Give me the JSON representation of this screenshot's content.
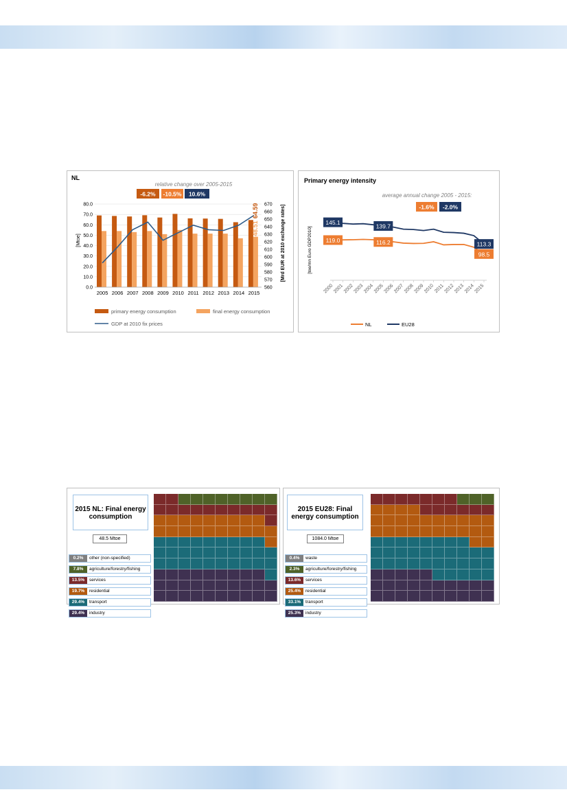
{
  "colors": {
    "primary": "#c55a11",
    "final": "#f4a460",
    "gdp": "#2e5c8a",
    "nl": "#ed7d31",
    "eu28": "#1f3864",
    "waste_other": "#808080",
    "agriculture": "#4f6228",
    "services": "#7b2a2a",
    "residential": "#b35a10",
    "transport": "#1b6b78",
    "industry": "#3f3151"
  },
  "chart_data": [
    {
      "type": "bar",
      "title": "NL",
      "subtitle": "relative change over 2005-2015",
      "badges": [
        {
          "value": "-6.2%",
          "color": "#c55a11"
        },
        {
          "value": "-10.5%",
          "color": "#ed7d31"
        },
        {
          "value": "10.6%",
          "color": "#1f3864"
        }
      ],
      "categories": [
        "2005",
        "2006",
        "2007",
        "2008",
        "2009",
        "2010",
        "2011",
        "2012",
        "2013",
        "2014",
        "2015"
      ],
      "series": [
        {
          "name": "primary energy consumption",
          "kind": "bar",
          "axis": "left",
          "values": [
            69.0,
            68.5,
            68.0,
            69.2,
            67.0,
            70.5,
            66.2,
            66.0,
            65.7,
            62.5,
            64.59
          ]
        },
        {
          "name": "final energy consumption",
          "kind": "bar",
          "axis": "left",
          "values": [
            54.0,
            54.0,
            53.0,
            54.0,
            51.0,
            55.0,
            51.5,
            51.5,
            51.5,
            47.0,
            48.51
          ]
        },
        {
          "name": "GDP at 2010 fix prices",
          "kind": "line",
          "axis": "right",
          "values": [
            592,
            613,
            636,
            646,
            622,
            632,
            642,
            636,
            635,
            642,
            655
          ]
        }
      ],
      "ylabel": "[Mtoe]",
      "y2label": "[Mrd EUR at 2010 exchange rates]",
      "ylim": [
        0,
        80
      ],
      "yticks": [
        "0.0",
        "10.0",
        "20.0",
        "30.0",
        "40.0",
        "50.0",
        "60.0",
        "70.0",
        "80.0"
      ],
      "y2lim": [
        560,
        670
      ],
      "y2ticks": [
        "560",
        "570",
        "580",
        "590",
        "600",
        "610",
        "620",
        "630",
        "640",
        "650",
        "660",
        "670"
      ],
      "annotations": [
        "64.59",
        "48.51"
      ],
      "legend": "bottom"
    },
    {
      "type": "line",
      "title": "Primary energy intensity",
      "subtitle": "average annual change 2005 - 2015:",
      "badges": [
        {
          "value": "-1.6%",
          "color": "#ed7d31"
        },
        {
          "value": "-2.0%",
          "color": "#1f3864"
        }
      ],
      "x": [
        "2000",
        "2001",
        "2002",
        "2003",
        "2004",
        "2005",
        "2006",
        "2007",
        "2008",
        "2009",
        "2010",
        "2011",
        "2012",
        "2013",
        "2014",
        "2015"
      ],
      "series": [
        {
          "name": "NL",
          "values": [
            119.0,
            119.3,
            119.5,
            120.0,
            119.5,
            116.2,
            116.5,
            114.5,
            114.0,
            114.2,
            116.5,
            112.0,
            112.5,
            112.5,
            108.5,
            98.5
          ]
        },
        {
          "name": "EU28",
          "values": [
            145.1,
            143.5,
            142.5,
            143.0,
            141.5,
            139.7,
            138.0,
            135.0,
            134.5,
            133.0,
            135.0,
            130.5,
            130.0,
            129.0,
            125.5,
            113.3
          ]
        }
      ],
      "ylabel": "[toe/mn Euro GDP2010]",
      "ylim": [
        60,
        180
      ],
      "labels": [
        {
          "series": "EU28",
          "x": "2000",
          "text": "145.1"
        },
        {
          "series": "EU28",
          "x": "2005",
          "text": "139.7"
        },
        {
          "series": "EU28",
          "x": "2015",
          "text": "113.3"
        },
        {
          "series": "NL",
          "x": "2000",
          "text": "119.0"
        },
        {
          "series": "NL",
          "x": "2005",
          "text": "116.2"
        },
        {
          "series": "NL",
          "x": "2015",
          "text": "98.5"
        }
      ],
      "legend": "bottom"
    },
    {
      "type": "waffle",
      "title": "2015 NL: Final energy consumption",
      "total": "48.5 Mtoe",
      "items": [
        {
          "pct": "0.2%",
          "label": "other (non-specified)",
          "value": 0.2,
          "color": "#808080"
        },
        {
          "pct": "7.8%",
          "label": "agriculture/forestry/fishing",
          "value": 7.8,
          "color": "#4f6228"
        },
        {
          "pct": "13.5%",
          "label": "services",
          "value": 13.5,
          "color": "#7b2a2a"
        },
        {
          "pct": "19.7%",
          "label": "residential",
          "value": 19.7,
          "color": "#b35a10"
        },
        {
          "pct": "29.4%",
          "label": "transport",
          "value": 29.4,
          "color": "#1b6b78"
        },
        {
          "pct": "29.4%",
          "label": "industry",
          "value": 29.4,
          "color": "#3f3151"
        }
      ]
    },
    {
      "type": "waffle",
      "title": "2015 EU28: Final energy consumption",
      "total": "1084.0 Mtoe",
      "items": [
        {
          "pct": "0.4%",
          "label": "waste",
          "value": 0.4,
          "color": "#808080"
        },
        {
          "pct": "2.3%",
          "label": "agriculture/forestry/fishing",
          "value": 2.3,
          "color": "#4f6228"
        },
        {
          "pct": "13.6%",
          "label": "services",
          "value": 13.6,
          "color": "#7b2a2a"
        },
        {
          "pct": "25.4%",
          "label": "residential",
          "value": 25.4,
          "color": "#b35a10"
        },
        {
          "pct": "33.1%",
          "label": "transport",
          "value": 33.1,
          "color": "#1b6b78"
        },
        {
          "pct": "25.3%",
          "label": "industry",
          "value": 25.3,
          "color": "#3f3151"
        }
      ]
    }
  ]
}
